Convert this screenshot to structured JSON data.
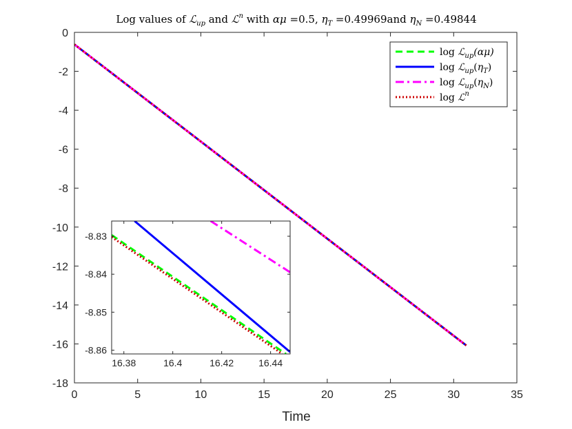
{
  "chart_data": [
    {
      "type": "line",
      "title": "Log values of ℒ_up and ℒ^n with αμ =0.5, η_T =0.49969and η_N =0.49844",
      "xlabel": "Time",
      "ylabel": "",
      "xlim": [
        0,
        35
      ],
      "ylim": [
        -18,
        0
      ],
      "xticks": [
        0,
        5,
        10,
        15,
        20,
        25,
        30,
        35
      ],
      "xtick_labels": [
        "0",
        "5",
        "10",
        "15",
        "20",
        "25",
        "30",
        "35"
      ],
      "yticks": [
        0,
        -2,
        -4,
        -6,
        -8,
        -10,
        -12,
        -14,
        -16,
        -18
      ],
      "ytick_labels": [
        "0",
        "-2",
        "-4",
        "-6",
        "-8",
        "-10",
        "-12",
        "-14",
        "-16",
        "-18"
      ],
      "grid": false,
      "legend_position": "top-right",
      "series": [
        {
          "name": "log ℒ_up(αμ)",
          "color": "#00ff00",
          "style": "dashed",
          "x": [
            0,
            31
          ],
          "y": [
            -0.62,
            -16.08
          ]
        },
        {
          "name": "log ℒ_up(η_T)",
          "color": "#0000ff",
          "style": "solid",
          "x": [
            0,
            31
          ],
          "y": [
            -0.62,
            -16.08
          ]
        },
        {
          "name": "log ℒ_up(η_N)",
          "color": "#ff00ff",
          "style": "dashdot",
          "x": [
            0,
            31
          ],
          "y": [
            -0.62,
            -16.08
          ]
        },
        {
          "name": "log ℒ^n",
          "color": "#cc0000",
          "style": "dotted",
          "x": [
            0,
            31
          ],
          "y": [
            -0.62,
            -16.08
          ]
        }
      ]
    },
    {
      "type": "line",
      "title": "",
      "xlabel": "",
      "ylabel": "",
      "xlim": [
        16.375,
        16.448
      ],
      "ylim": [
        -8.861,
        -8.826
      ],
      "xticks": [
        16.38,
        16.4,
        16.42,
        16.44
      ],
      "xtick_labels": [
        "16.38",
        "16.4",
        "16.42",
        "16.44"
      ],
      "yticks": [
        -8.83,
        -8.84,
        -8.85,
        -8.86
      ],
      "ytick_labels": [
        "-8.83",
        "-8.84",
        "-8.85",
        "-8.86"
      ],
      "grid": false,
      "series": [
        {
          "name": "log ℒ_up(αμ)",
          "color": "#00ff00",
          "style": "dashed",
          "x": [
            16.375,
            16.4463
          ],
          "y": [
            -8.8297,
            -8.861
          ]
        },
        {
          "name": "log ℒ_up(η_T)",
          "color": "#0000ff",
          "style": "solid",
          "x": [
            16.3844,
            16.448
          ],
          "y": [
            -8.826,
            -8.8605
          ]
        },
        {
          "name": "log ℒ_up(η_N)",
          "color": "#ff00ff",
          "style": "dashdot",
          "x": [
            16.4155,
            16.448
          ],
          "y": [
            -8.826,
            -8.8395
          ]
        },
        {
          "name": "log ℒ^n",
          "color": "#cc0000",
          "style": "dotted",
          "x": [
            16.375,
            16.4448
          ],
          "y": [
            -8.8302,
            -8.861
          ]
        }
      ]
    }
  ]
}
